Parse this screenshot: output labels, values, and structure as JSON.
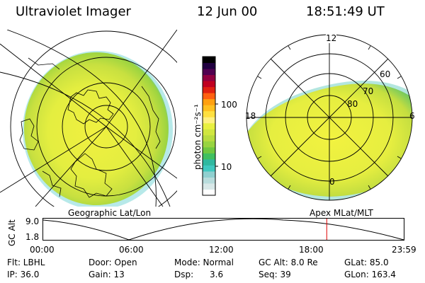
{
  "header": {
    "instrument": "Ultraviolet Imager",
    "date": "12 Jun 00",
    "time": "18:51:49 UT"
  },
  "left_panel": {
    "caption": "Geographic Lat/Lon"
  },
  "right_panel": {
    "caption": "Apex MLat/MLT",
    "mlt_labels": [
      "12",
      "18",
      "6",
      "0"
    ],
    "mlat_labels": [
      "60",
      "70",
      "80"
    ]
  },
  "colorbar": {
    "unit_label": "photon cm⁻²s⁻¹",
    "tick_labels": [
      "100",
      "10"
    ],
    "colors": [
      "#ffffff",
      "#d8e8e8",
      "#b8dcdc",
      "#90d0d0",
      "#40c8c0",
      "#30b8a0",
      "#40c060",
      "#70c840",
      "#98d440",
      "#b8dc40",
      "#d0e640",
      "#e8f040",
      "#fff080",
      "#ffe040",
      "#ffc020",
      "#ffa010",
      "#ff6010",
      "#e02010",
      "#c00020",
      "#900040",
      "#500050",
      "#200040",
      "#000000"
    ]
  },
  "altitude_plot": {
    "y_label": "GC Alt",
    "y_ticks": [
      "9.0",
      "1.8"
    ],
    "x_ticks": [
      "00:00",
      "06:00",
      "12:00",
      "18:00",
      "23:59"
    ],
    "current_time_marker_hours": 18.86,
    "marker_color": "#e00000"
  },
  "footer": {
    "rows": [
      [
        "Flt: LBHL",
        "Door: Open",
        "Mode: Normal",
        "GC Alt: 8.0 Re",
        "GLat: 85.0"
      ],
      [
        "IP: 36.0",
        "Gain: 13",
        "Dsp:      3.6",
        "Seq: 39",
        "GLon: 163.4"
      ]
    ]
  }
}
